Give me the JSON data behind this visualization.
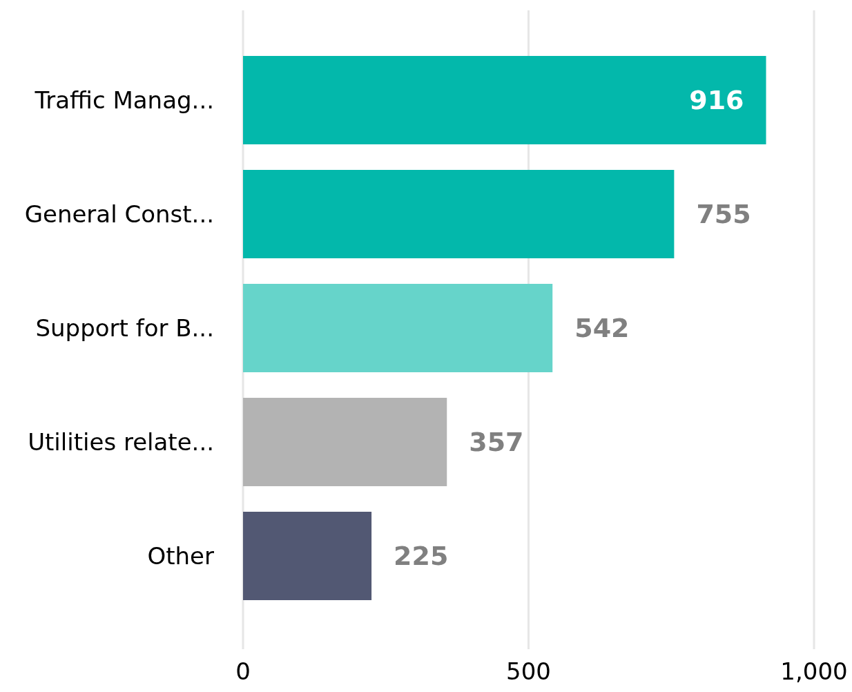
{
  "chart_data": {
    "type": "bar",
    "orientation": "horizontal",
    "categories": [
      "Traffic Manag...",
      "General Const...",
      "Support for B...",
      "Utilities relate...",
      "Other"
    ],
    "values": [
      916,
      755,
      542,
      357,
      225
    ],
    "colors": [
      "#03b8ab",
      "#03b8ab",
      "#66d4ca",
      "#b3b3b3",
      "#525873"
    ],
    "xlim": [
      0,
      1000
    ],
    "xticks": [
      0,
      500,
      {
        "value": 1000,
        "label": "1,000"
      }
    ],
    "grid": "x",
    "data_labels": true
  }
}
